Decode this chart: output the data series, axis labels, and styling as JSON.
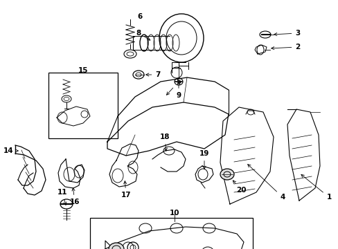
{
  "bg_color": "#ffffff",
  "lc": "#1a1a1a",
  "figsize": [
    4.89,
    3.6
  ],
  "dpi": 100,
  "xlim": [
    0,
    489
  ],
  "ylim": [
    0,
    360
  ]
}
